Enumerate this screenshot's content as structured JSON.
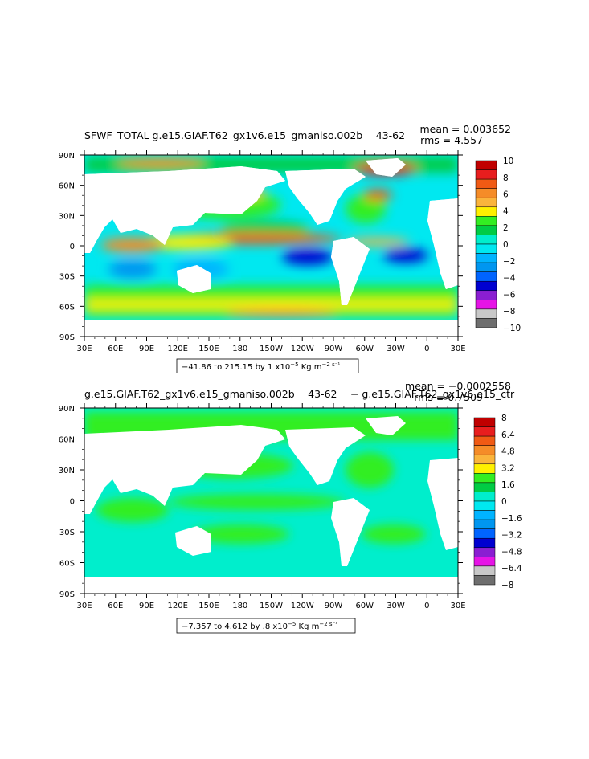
{
  "chart_data": [
    {
      "type": "heatmap",
      "title": "SFWF_TOTAL g.e15.GIAF.T62_gx1v6.e15_gmaniso.002b   43-62 ",
      "stats": {
        "mean": "mean = 0.003652",
        "rms": "rms = 4.557"
      },
      "x_ticks": [
        "30E",
        "60E",
        "90E",
        "120E",
        "150E",
        "180",
        "150W",
        "120W",
        "90W",
        "60W",
        "30W",
        "0",
        "30E"
      ],
      "y_ticks": [
        "90N",
        "60N",
        "30N",
        "0",
        "30S",
        "60S",
        "90S"
      ],
      "xlim": [
        30,
        390
      ],
      "ylim": [
        -90,
        90
      ],
      "colorbar": {
        "labels": [
          "10",
          "8",
          "6",
          "4",
          "2",
          "0",
          "−2",
          "−4",
          "−6",
          "−8",
          "−10"
        ],
        "colors": [
          "#c00000",
          "#e81e1e",
          "#f05a14",
          "#f58c28",
          "#fab43c",
          "#fff000",
          "#33ee22",
          "#00cc44",
          "#00eecc",
          "#00e8f0",
          "#00b4ff",
          "#0096f0",
          "#0064ff",
          "#0000d0",
          "#8a1ed2",
          "#e614e6",
          "#c8c8c8",
          "#6e6e6e"
        ]
      },
      "range_note": {
        "text": "−41.86 to 215.15 by 1 x10",
        "exp": "−5",
        "unit": " Kg m",
        "unit_exp": "−2 s⁻¹"
      }
    },
    {
      "type": "heatmap",
      "title": "g.e15.GIAF.T62_gx1v6.e15_gmaniso.002b   43-62  − g.e15.GIAF.T62_gx1v6.e15_ctr",
      "stats": {
        "mean": "mean = −0.0002558",
        "rms": "rms = 0.7509"
      },
      "x_ticks": [
        "30E",
        "60E",
        "90E",
        "120E",
        "150E",
        "180",
        "150W",
        "120W",
        "90W",
        "60W",
        "30W",
        "0",
        "30E"
      ],
      "y_ticks": [
        "90N",
        "60N",
        "30N",
        "0",
        "30S",
        "60S",
        "90S"
      ],
      "xlim": [
        30,
        390
      ],
      "ylim": [
        -90,
        90
      ],
      "colorbar": {
        "labels": [
          "8",
          "6.4",
          "4.8",
          "3.2",
          "1.6",
          "0",
          "−1.6",
          "−3.2",
          "−4.8",
          "−6.4",
          "−8"
        ],
        "colors": [
          "#c00000",
          "#e81e1e",
          "#f05a14",
          "#f58c28",
          "#fab43c",
          "#fff000",
          "#33ee22",
          "#00cc44",
          "#00eecc",
          "#00e8f0",
          "#00b4ff",
          "#0096f0",
          "#0064ff",
          "#0000d0",
          "#8a1ed2",
          "#e614e6",
          "#c8c8c8",
          "#6e6e6e"
        ]
      },
      "range_note": {
        "text": "−7.357 to 4.612 by .8 x10",
        "exp": "−5",
        "unit": " Kg m",
        "unit_exp": "−2 s⁻¹"
      }
    }
  ]
}
